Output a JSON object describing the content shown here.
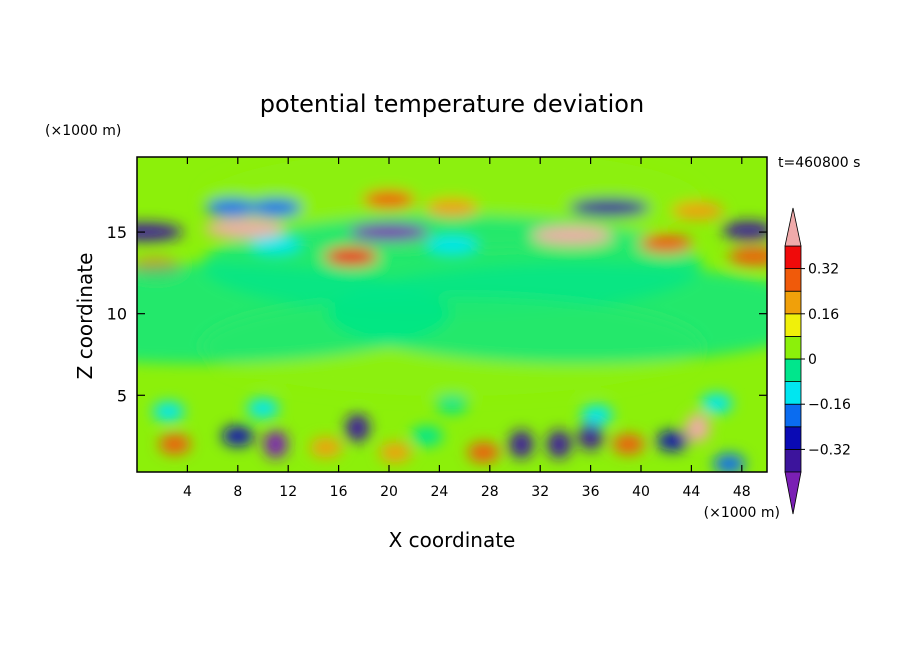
{
  "chart_data": {
    "type": "heatmap",
    "title": "potential temperature deviation",
    "time_label": "t=460800 s",
    "xlabel": "X coordinate",
    "ylabel": "Z coordinate",
    "x_unit": "(×1000 m)",
    "y_unit": "(×1000 m)",
    "xlim": [
      0,
      50
    ],
    "ylim": [
      0.3,
      19.6
    ],
    "x_ticks": [
      4,
      8,
      12,
      16,
      20,
      24,
      28,
      32,
      36,
      40,
      44,
      48
    ],
    "y_ticks": [
      5,
      10,
      15
    ],
    "colorbar": {
      "levels": [
        -0.4,
        -0.32,
        -0.24,
        -0.16,
        -0.08,
        0,
        0.08,
        0.16,
        0.24,
        0.32,
        0.4
      ],
      "tick_labels": [
        "0.32",
        "0.16",
        "0",
        "−0.16",
        "−0.32"
      ],
      "tick_values": [
        0.32,
        0.16,
        0,
        -0.16,
        -0.32
      ],
      "colors": [
        "#7a1fb4",
        "#3c149c",
        "#0a0ab4",
        "#0a6cf0",
        "#00e6f0",
        "#00e68c",
        "#8cf00a",
        "#f0f00a",
        "#f0a00a",
        "#f05a0a",
        "#f00a0a",
        "#f0aaaa"
      ],
      "extend": "both"
    },
    "features": [
      {
        "x": 25,
        "z": 17,
        "value": 0.03
      },
      {
        "x": 25,
        "z": 13,
        "value": -0.02
      },
      {
        "x": 8.5,
        "z": 15.2,
        "value": 0.45
      },
      {
        "x": 34.5,
        "z": 14.8,
        "value": 0.45
      },
      {
        "x": 20,
        "z": 15.0,
        "value": -0.45
      },
      {
        "x": 0.5,
        "z": 15.0,
        "value": -0.38
      },
      {
        "x": 48.5,
        "z": 15.1,
        "value": -0.35
      },
      {
        "x": 37.5,
        "z": 16.5,
        "value": -0.4
      },
      {
        "x": 7.5,
        "z": 16.5,
        "value": -0.2
      },
      {
        "x": 11,
        "z": 16.5,
        "value": -0.2
      },
      {
        "x": 17,
        "z": 13.5,
        "value": 0.35
      },
      {
        "x": 1.5,
        "z": 12.8,
        "value": 0.3
      },
      {
        "x": 49,
        "z": 13.5,
        "value": 0.25
      },
      {
        "x": 42,
        "z": 14.3,
        "value": 0.3
      },
      {
        "x": 20,
        "z": 17.0,
        "value": 0.3
      },
      {
        "x": 25,
        "z": 16.5,
        "value": 0.2
      },
      {
        "x": 44.5,
        "z": 16.3,
        "value": 0.18
      },
      {
        "x": 25,
        "z": 14.2,
        "value": -0.12
      },
      {
        "x": 11,
        "z": 14.2,
        "value": -0.12
      },
      {
        "x": 3,
        "z": 2.0,
        "value": 0.25
      },
      {
        "x": 11,
        "z": 2.0,
        "value": -0.42
      },
      {
        "x": 8,
        "z": 2.5,
        "value": -0.3
      },
      {
        "x": 17.5,
        "z": 3.0,
        "value": -0.35
      },
      {
        "x": 20.5,
        "z": 1.5,
        "value": 0.2
      },
      {
        "x": 15,
        "z": 1.8,
        "value": 0.2
      },
      {
        "x": 27.5,
        "z": 1.5,
        "value": 0.25
      },
      {
        "x": 30.5,
        "z": 2.0,
        "value": -0.35
      },
      {
        "x": 33.5,
        "z": 2.0,
        "value": -0.4
      },
      {
        "x": 36,
        "z": 2.5,
        "value": -0.35
      },
      {
        "x": 39,
        "z": 2.0,
        "value": 0.25
      },
      {
        "x": 44.5,
        "z": 3.0,
        "value": 0.45
      },
      {
        "x": 42.5,
        "z": 2.2,
        "value": -0.3
      },
      {
        "x": 47,
        "z": 0.8,
        "value": -0.2
      },
      {
        "x": 23,
        "z": 2.5,
        "value": -0.08
      },
      {
        "x": 2.5,
        "z": 4.0,
        "value": -0.12
      },
      {
        "x": 25,
        "z": 4.5,
        "value": -0.08
      },
      {
        "x": 46,
        "z": 4.5,
        "value": -0.1
      },
      {
        "x": 36.5,
        "z": 3.8,
        "value": -0.12
      },
      {
        "x": 10,
        "z": 4.2,
        "value": -0.1
      },
      {
        "x": 25,
        "z": 8.0,
        "value": 0.03
      },
      {
        "x": 5,
        "z": 10.0,
        "value": -0.02
      },
      {
        "x": 35,
        "z": 10.0,
        "value": -0.02
      }
    ]
  }
}
